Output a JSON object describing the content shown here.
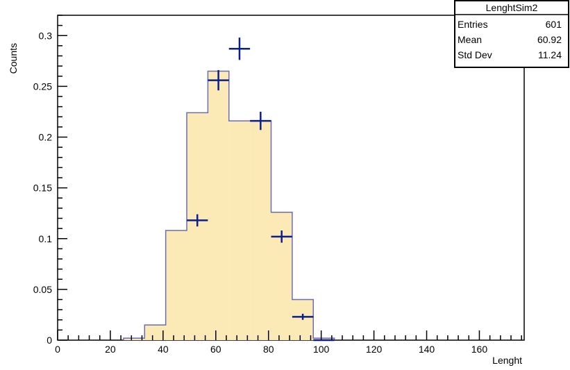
{
  "chart_data": {
    "type": "bar",
    "xlabel": "Lenght",
    "ylabel": "Counts",
    "xlim": [
      0,
      177
    ],
    "ylim": [
      0,
      0.32
    ],
    "x_ticks": [
      0,
      20,
      40,
      60,
      80,
      100,
      120,
      140,
      160
    ],
    "x_tick_labels": [
      "0",
      "20",
      "40",
      "60",
      "80",
      "100",
      "120",
      "140",
      "160"
    ],
    "y_ticks": [
      0,
      0.05,
      0.1,
      0.15,
      0.2,
      0.25,
      0.3
    ],
    "y_tick_labels": [
      "0",
      "0.05",
      "0.1",
      "0.15",
      "0.2",
      "0.25",
      "0.3"
    ],
    "grid": false,
    "legend": "none",
    "series": [
      {
        "type": "histogram",
        "fill_color": "#fbe9b6",
        "line_color": "#6b6bb8",
        "bins": [
          {
            "x0": 25,
            "x1": 33,
            "value": 0.002
          },
          {
            "x0": 33,
            "x1": 41,
            "value": 0.015
          },
          {
            "x0": 41,
            "x1": 49,
            "value": 0.108
          },
          {
            "x0": 49,
            "x1": 57,
            "value": 0.224
          },
          {
            "x0": 57,
            "x1": 65,
            "value": 0.265
          },
          {
            "x0": 65,
            "x1": 73,
            "value": 0.216
          },
          {
            "x0": 73,
            "x1": 81,
            "value": 0.216
          },
          {
            "x0": 81,
            "x1": 89,
            "value": 0.126
          },
          {
            "x0": 89,
            "x1": 97,
            "value": 0.04
          },
          {
            "x0": 97,
            "x1": 105,
            "value": 0.002
          }
        ]
      },
      {
        "type": "errorbars",
        "color": "#0b1f8c",
        "points": [
          {
            "x": 53,
            "y": 0.118,
            "xerr": 4,
            "yerr": 0.006
          },
          {
            "x": 61,
            "y": 0.256,
            "xerr": 4,
            "yerr": 0.01
          },
          {
            "x": 69,
            "y": 0.287,
            "xerr": 4,
            "yerr": 0.011
          },
          {
            "x": 77,
            "y": 0.216,
            "xerr": 4,
            "yerr": 0.009
          },
          {
            "x": 85,
            "y": 0.102,
            "xerr": 4,
            "yerr": 0.006
          },
          {
            "x": 93,
            "y": 0.023,
            "xerr": 4,
            "yerr": 0.003
          },
          {
            "x": 101,
            "y": 0.0,
            "xerr": 4,
            "yerr": 0.0
          }
        ]
      }
    ],
    "stats_box": {
      "title": "LenghtSim2",
      "rows": [
        {
          "label": "Entries",
          "value": "601"
        },
        {
          "label": "Mean",
          "value": "60.92"
        },
        {
          "label": "Std Dev",
          "value": "11.24"
        }
      ]
    }
  }
}
